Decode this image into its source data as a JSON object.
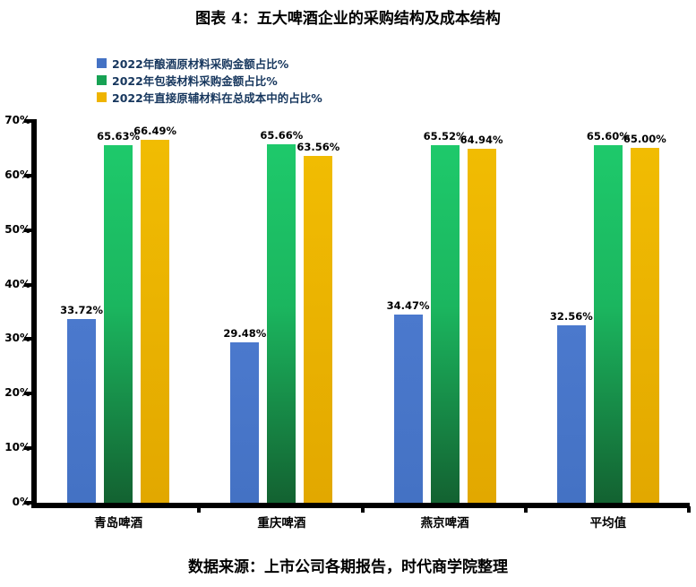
{
  "title": "图表 4：五大啤酒企业的采购结构及成本结构",
  "source": "数据来源：上市公司各期报告，时代商学院整理",
  "colors": {
    "series_blue": "#4472C4",
    "series_green_top": "#1EC96B",
    "series_green_bottom": "#136231",
    "series_green_legend": "#17A254",
    "series_yellow_top": "#F1BC02",
    "series_yellow_bottom": "#E2A800",
    "series_yellow_legend": "#EFB400",
    "axis": "#000000",
    "legend_text": "#17375E"
  },
  "chart_data": {
    "type": "bar",
    "title": "图表 4：五大啤酒企业的采购结构及成本结构",
    "categories": [
      "青岛啤酒",
      "重庆啤酒",
      "燕京啤酒",
      "平均值"
    ],
    "series": [
      {
        "name": "2022年酿酒原材料采购金额占比%",
        "color": "blue",
        "values": [
          33.72,
          29.48,
          34.47,
          32.56
        ]
      },
      {
        "name": "2022年包装材料采购金额占比%",
        "color": "green",
        "values": [
          65.63,
          65.66,
          65.52,
          65.6
        ]
      },
      {
        "name": "2022年直接原辅材料在总成本中的占比%",
        "color": "yellow",
        "values": [
          66.49,
          63.56,
          64.94,
          65.0
        ]
      }
    ],
    "data_labels": [
      [
        "33.72%",
        "29.48%",
        "34.47%",
        "32.56%"
      ],
      [
        "65.63%",
        "65.66%",
        "65.52%",
        "65.60%"
      ],
      [
        "66.49%",
        "63.56%",
        "64.94%",
        "65.00%"
      ]
    ],
    "xlabel": "",
    "ylabel": "",
    "ylim": [
      0,
      70
    ],
    "ytick_step": 10,
    "ytick_labels": [
      "0%",
      "10%",
      "20%",
      "30%",
      "40%",
      "50%",
      "60%",
      "70%"
    ],
    "grid": false,
    "legend_position": "top-left",
    "data_label_format": "0.00%"
  }
}
